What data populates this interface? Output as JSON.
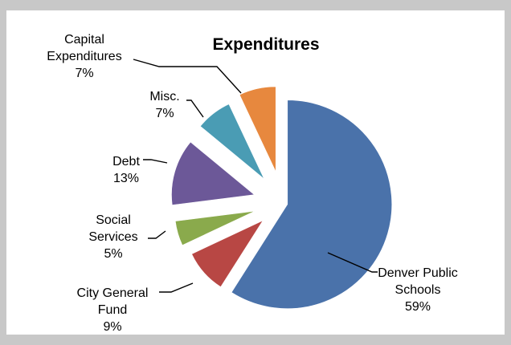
{
  "chart_data": {
    "type": "pie",
    "title": "Expenditures",
    "categories": [
      "Denver Public Schools",
      "City General Fund",
      "Social Services",
      "Debt",
      "Misc.",
      "Capital Expenditures"
    ],
    "values": [
      59,
      9,
      5,
      13,
      7,
      7
    ],
    "colors": [
      "#4a72aa",
      "#b84744",
      "#8aaa4c",
      "#6c5898",
      "#4a9cb4",
      "#e7883e"
    ],
    "exploded": true,
    "labels": [
      {
        "lines": [
          "Denver Public",
          "Schools",
          "59%"
        ]
      },
      {
        "lines": [
          "City General",
          "Fund",
          "9%"
        ]
      },
      {
        "lines": [
          "Social",
          "Services",
          "5%"
        ]
      },
      {
        "lines": [
          "Debt",
          "13%"
        ]
      },
      {
        "lines": [
          "Misc.",
          "7%"
        ]
      },
      {
        "lines": [
          "Capital",
          "Expenditures",
          "7%"
        ]
      }
    ]
  }
}
